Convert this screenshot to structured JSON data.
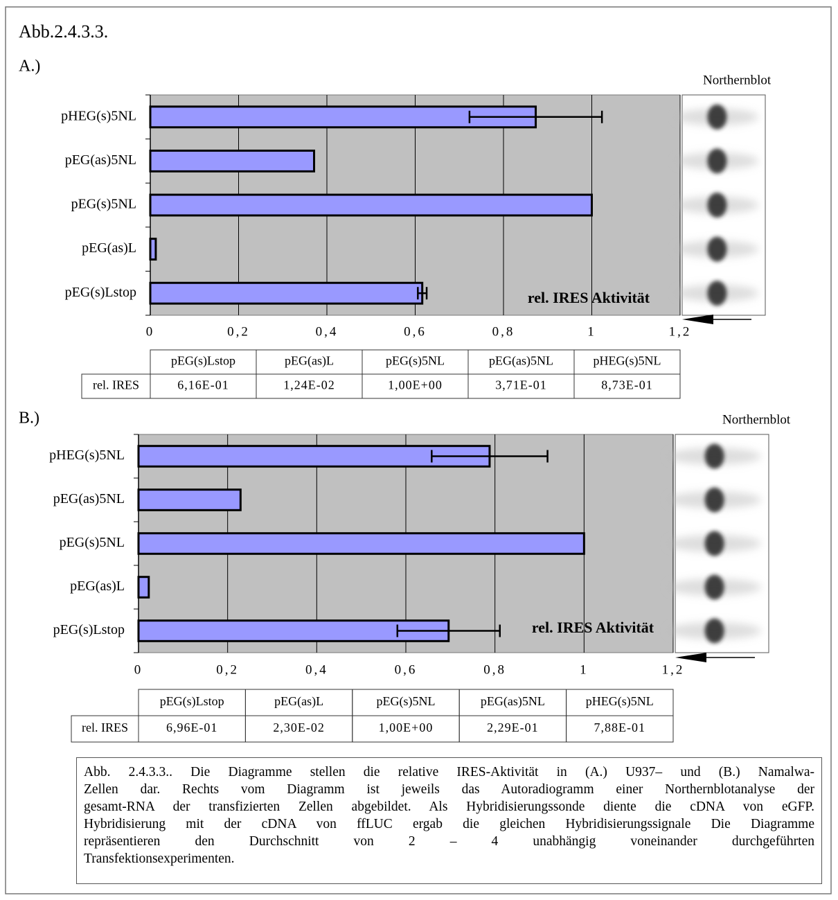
{
  "figure_label": "Abb.2.4.3.3.",
  "chart_data": [
    {
      "type": "bar",
      "orientation": "horizontal",
      "panel": "A.)",
      "blot_label": "Northernblot",
      "annotation": "rel. IRES Aktivität",
      "categories": [
        "pEG(s)Lstop",
        "pEG(as)L",
        "pEG(s)5NL",
        "pEG(as)5NL",
        "pHEG(s)5NL"
      ],
      "values": [
        0.616,
        0.0124,
        1.0,
        0.371,
        0.873
      ],
      "errors": [
        0.01,
        null,
        null,
        null,
        0.15
      ],
      "color": "#9999ff",
      "plot_background": "#c0c0c0",
      "grid": true,
      "xlim": [
        0,
        1.2
      ],
      "xticks": [
        0,
        {
          "value": 0.2,
          "label": "0,2"
        },
        {
          "value": 0.4,
          "label": "0,4"
        },
        {
          "value": 0.6,
          "label": "0,6"
        },
        {
          "value": 0.8,
          "label": "0,8"
        },
        1,
        {
          "value": 1.2,
          "label": "1,2"
        }
      ],
      "table": {
        "header": [
          "pEG(s)Lstop",
          "pEG(as)L",
          "pEG(s)5NL",
          "pEG(as)5NL",
          "pHEG(s)5NL"
        ],
        "row_label": "rel. IRES",
        "cells": [
          "6,16E-01",
          "1,24E-02",
          "1,00E+00",
          "3,71E-01",
          "8,73E-01"
        ]
      }
    },
    {
      "type": "bar",
      "orientation": "horizontal",
      "panel": "B.)",
      "blot_label": "Northernblot",
      "annotation": "rel.  IRES  Aktivität",
      "categories": [
        "pEG(s)Lstop",
        "pEG(as)L",
        "pEG(s)5NL",
        "pEG(as)5NL",
        "pHEG(s)5NL"
      ],
      "values": [
        0.696,
        0.023,
        1.0,
        0.229,
        0.788
      ],
      "errors": [
        0.115,
        null,
        null,
        null,
        0.13
      ],
      "color": "#9999ff",
      "plot_background": "#c0c0c0",
      "grid": true,
      "xlim": [
        0,
        1.2
      ],
      "xticks": [
        0,
        {
          "value": 0.2,
          "label": "0,2"
        },
        {
          "value": 0.4,
          "label": "0,4"
        },
        {
          "value": 0.6,
          "label": "0,6"
        },
        {
          "value": 0.8,
          "label": "0,8"
        },
        1,
        {
          "value": 1.2,
          "label": "1,2"
        }
      ],
      "table": {
        "header": [
          "pEG(s)Lstop",
          "pEG(as)L",
          "pEG(s)5NL",
          "pEG(as)5NL",
          "pHEG(s)5NL"
        ],
        "row_label": "rel. IRES",
        "cells": [
          "6,96E-01",
          "2,30E-02",
          "1,00E+00",
          "2,29E-01",
          "7,88E-01"
        ]
      }
    }
  ],
  "caption": [
    "Abb. 2.4.3.3.. Die Diagramme stellen die relative IRES-Aktivität in (A.) U937– und (B.) Namalwa-",
    "Zellen dar. Rechts vom Diagramm ist jeweils das Autoradiogramm einer Northernblotanalyse der",
    "gesamt-RNA der transfizierten Zellen abgebildet. Als Hybridisierungssonde diente die cDNA von eGFP.",
    "Hybridisierung mit der cDNA von ffLUC ergab die gleichen Hybridisierungssignale  Die Diagramme",
    "repräsentieren den Durchschnitt von 2 – 4 unabhängig voneinander durchgeführten",
    "Transfektionsexperimenten."
  ]
}
